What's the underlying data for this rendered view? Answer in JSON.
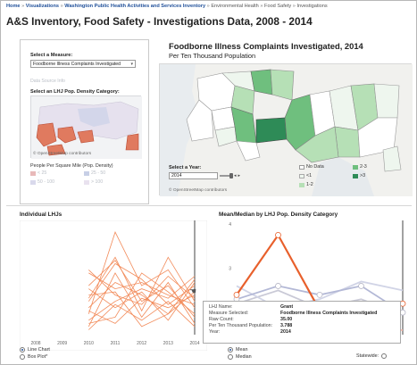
{
  "breadcrumb": {
    "items": [
      "Home",
      "Visualizations",
      "Washington Public Health Activities and Services Inventory",
      "Environmental Health",
      "Food Safety",
      "Investigations"
    ],
    "separator": "»"
  },
  "page_title": "A&S Inventory, Food Safety - Investigations Data, 2008 - 2014",
  "filters": {
    "measure_label": "Select a Measure:",
    "measure_value": "Foodborne Illness Complaints Investigated",
    "faint_label": "Data Source Info",
    "density_label": "Select an LHJ Pop. Density Category:",
    "map_credit": "© OpenStreetMap contributors",
    "density_legend_title": "People Per Square Mile (Pop. Density)",
    "density_legend": [
      {
        "label": "< 25",
        "color": "#e8b9b9"
      },
      {
        "label": "25 - 50",
        "color": "#c7cfe6"
      },
      {
        "label": "50 - 100",
        "color": "#d9d9ec"
      },
      {
        "label": "> 100",
        "color": "#e9e2ef"
      }
    ]
  },
  "map": {
    "title": "Foodborne Illness Complaints Investigated, 2014",
    "subtitle": "Per Ten Thousand Population",
    "year_label": "Select a Year:",
    "year_value": "2014",
    "credit": "© OpenStreetMap contributors",
    "legend": [
      {
        "label": "No Data",
        "color": "#ffffff"
      },
      {
        "label": "2-3",
        "color": "#6fbf7e"
      },
      {
        "label": "<1",
        "color": "#eef6ee"
      },
      {
        "label": ">3",
        "color": "#2e8b57"
      },
      {
        "label": "1-2",
        "color": "#b6e0b6"
      }
    ],
    "colors": {
      "nodata": "#ffffff",
      "low": "#eef6ee",
      "mid": "#b6e0b6",
      "high": "#6fbf7e",
      "top": "#2e8b57"
    }
  },
  "lines_panel": {
    "title": "Individual LHJs",
    "options": [
      {
        "label": "Line Chart",
        "selected": true
      },
      {
        "label": "Box Plot*",
        "selected": false
      }
    ]
  },
  "means_panel": {
    "title": "Mean/Median by LHJ Pop. Density Category",
    "options": [
      {
        "label": "Mean",
        "selected": true
      },
      {
        "label": "Median",
        "selected": false
      }
    ],
    "statewide_label": "Statewide:"
  },
  "tooltip": {
    "rows": [
      {
        "k": "LHJ Name:",
        "v": "Grant"
      },
      {
        "k": "Measure Selected:",
        "v": "Foodborne Illness Complaints Investigated"
      },
      {
        "k": "Raw Count:",
        "v": "35.00"
      },
      {
        "k": "Per Ten Thousand Population:",
        "v": "3.788"
      },
      {
        "k": "Year:",
        "v": "2014"
      }
    ]
  },
  "chart_data": [
    {
      "type": "line",
      "title": "Individual LHJs",
      "x": [
        2008,
        2009,
        2010,
        2011,
        2012,
        2013,
        2014
      ],
      "xlim": [
        2008,
        2014
      ],
      "ylabel": "",
      "grid": false,
      "series": [
        {
          "values": [
            null,
            null,
            0.6,
            3.2,
            1.5,
            2.0,
            0.8
          ]
        },
        {
          "values": [
            null,
            null,
            1.9,
            1.4,
            1.6,
            1.2,
            0.9
          ]
        },
        {
          "values": [
            null,
            null,
            1.0,
            2.2,
            1.7,
            0.9,
            1.5
          ]
        },
        {
          "values": [
            null,
            null,
            1.1,
            2.4,
            0.7,
            2.4,
            1.0
          ]
        },
        {
          "values": [
            null,
            null,
            0.4,
            1.0,
            1.4,
            1.1,
            1.8
          ]
        },
        {
          "values": [
            null,
            null,
            1.5,
            2.3,
            1.0,
            1.5,
            0.5
          ]
        },
        {
          "values": [
            null,
            null,
            0.8,
            1.6,
            1.2,
            0.6,
            1.3
          ]
        },
        {
          "values": [
            null,
            null,
            0.3,
            0.5,
            1.9,
            1.3,
            0.6
          ]
        },
        {
          "values": [
            null,
            null,
            2.0,
            1.2,
            0.9,
            1.8,
            1.1
          ]
        },
        {
          "values": [
            null,
            null,
            1.4,
            0.8,
            1.3,
            0.4,
            1.6
          ]
        },
        {
          "values": [
            null,
            null,
            0.2,
            1.9,
            0.5,
            1.6,
            0.3
          ]
        },
        {
          "values": [
            null,
            null,
            0.7,
            0.3,
            1.1,
            0.8,
            1.2
          ]
        },
        {
          "values": [
            null,
            null,
            0.1,
            0.9,
            0.4,
            1.0,
            0.2
          ]
        },
        {
          "values": [
            null,
            null,
            1.2,
            1.3,
            0.2,
            0.6,
            1.7
          ]
        }
      ],
      "color": "#f28b5a"
    },
    {
      "type": "line",
      "title": "Mean/Median by LHJ Pop. Density Category",
      "x": [
        2010,
        2011,
        2012,
        2013,
        2014
      ],
      "ylim": [
        1.5,
        4.0
      ],
      "yticks": [
        2,
        3,
        4
      ],
      "grid": false,
      "series": [
        {
          "color": "#e8602c",
          "values": [
            2.4,
            3.75,
            2.05,
            2.1,
            2.2
          ]
        },
        {
          "color": "#b3b8d6",
          "values": [
            2.3,
            2.6,
            2.4,
            2.6,
            2.0
          ]
        },
        {
          "color": "#d1d4e6",
          "values": [
            2.6,
            2.1,
            2.3,
            2.7,
            2.5
          ]
        },
        {
          "color": "#c9c9d6",
          "values": [
            2.2,
            2.5,
            2.1,
            2.3,
            1.95
          ]
        },
        {
          "color": "#f1b5a8",
          "values": [
            1.6,
            1.7,
            1.55,
            1.65,
            1.6
          ]
        }
      ]
    }
  ]
}
